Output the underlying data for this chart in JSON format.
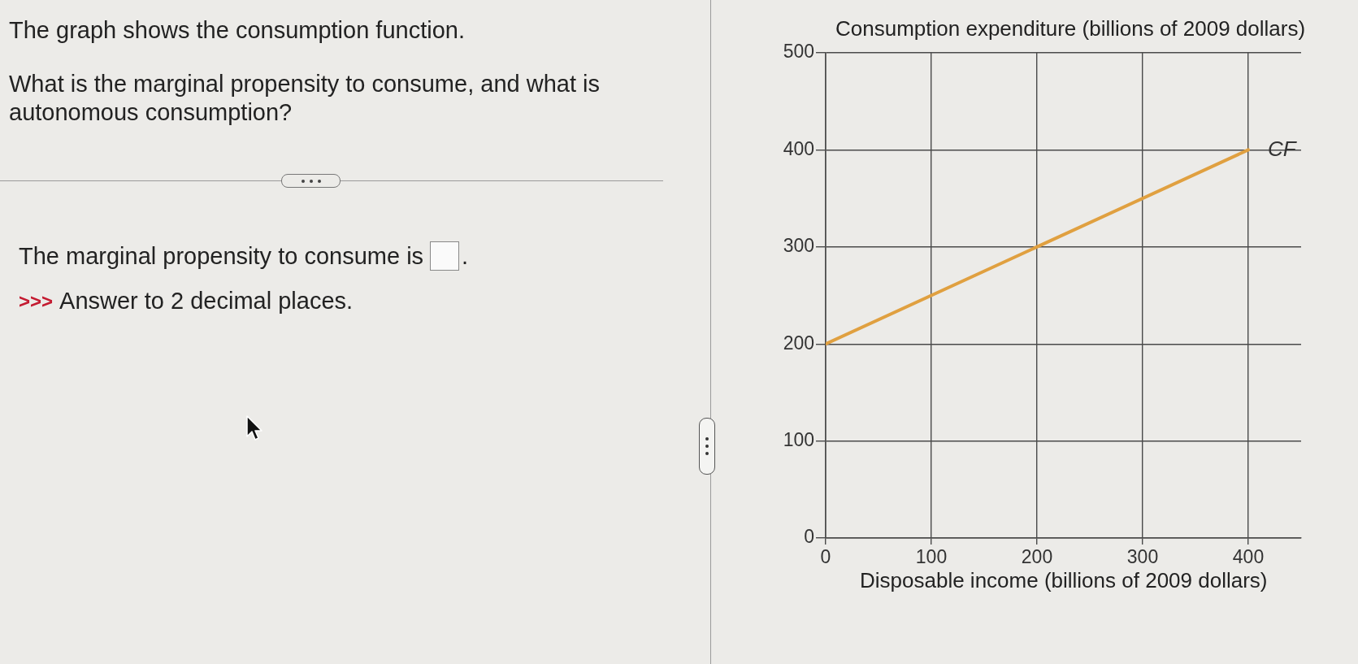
{
  "chart_data": {
    "type": "line",
    "xlabel": "Disposable income (billions of 2009 dollars)",
    "ylabel": "Consumption expenditure (billions of 2009 dollars)",
    "series": [
      {
        "name": "CF",
        "color": "#e0a040",
        "x": [
          0,
          400
        ],
        "values": [
          200,
          400
        ]
      }
    ],
    "xlim": [
      0,
      450
    ],
    "ylim": [
      0,
      500
    ],
    "xticks": [
      0,
      100,
      200,
      300,
      400
    ],
    "yticks": [
      0,
      100,
      200,
      300,
      400,
      500
    ],
    "grid": true,
    "annotations": [
      "The graph shows the consumption function.",
      "What is the marginal propensity to consume, and what is autonomous consumption?",
      "The marginal propensity to consume is",
      ".",
      ">>>",
      "Answer to 2 decimal places."
    ]
  }
}
